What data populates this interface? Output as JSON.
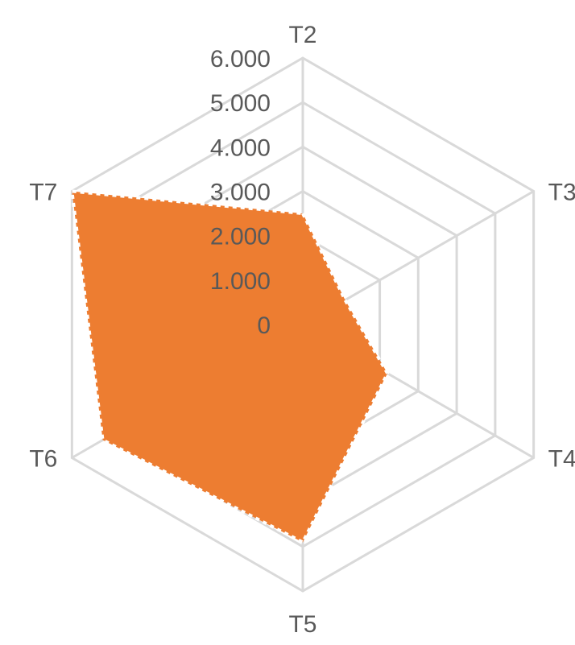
{
  "chart_data": {
    "type": "radar",
    "categories": [
      "T2",
      "T3",
      "T4",
      "T5",
      "T6",
      "T7"
    ],
    "series": [
      {
        "values": [
          2.5,
          1.1,
          2.2,
          4.9,
          5.2,
          6.0
        ]
      }
    ],
    "rlim": [
      0,
      6
    ],
    "ticks": [
      "0",
      "1.000",
      "2.000",
      "3.000",
      "4.000",
      "5.000",
      "6.000"
    ],
    "title": "",
    "legend": "none",
    "grid": true,
    "colors": {
      "series": "#ED7D31",
      "grid": "#d9d9d9",
      "text": "#595959"
    }
  }
}
